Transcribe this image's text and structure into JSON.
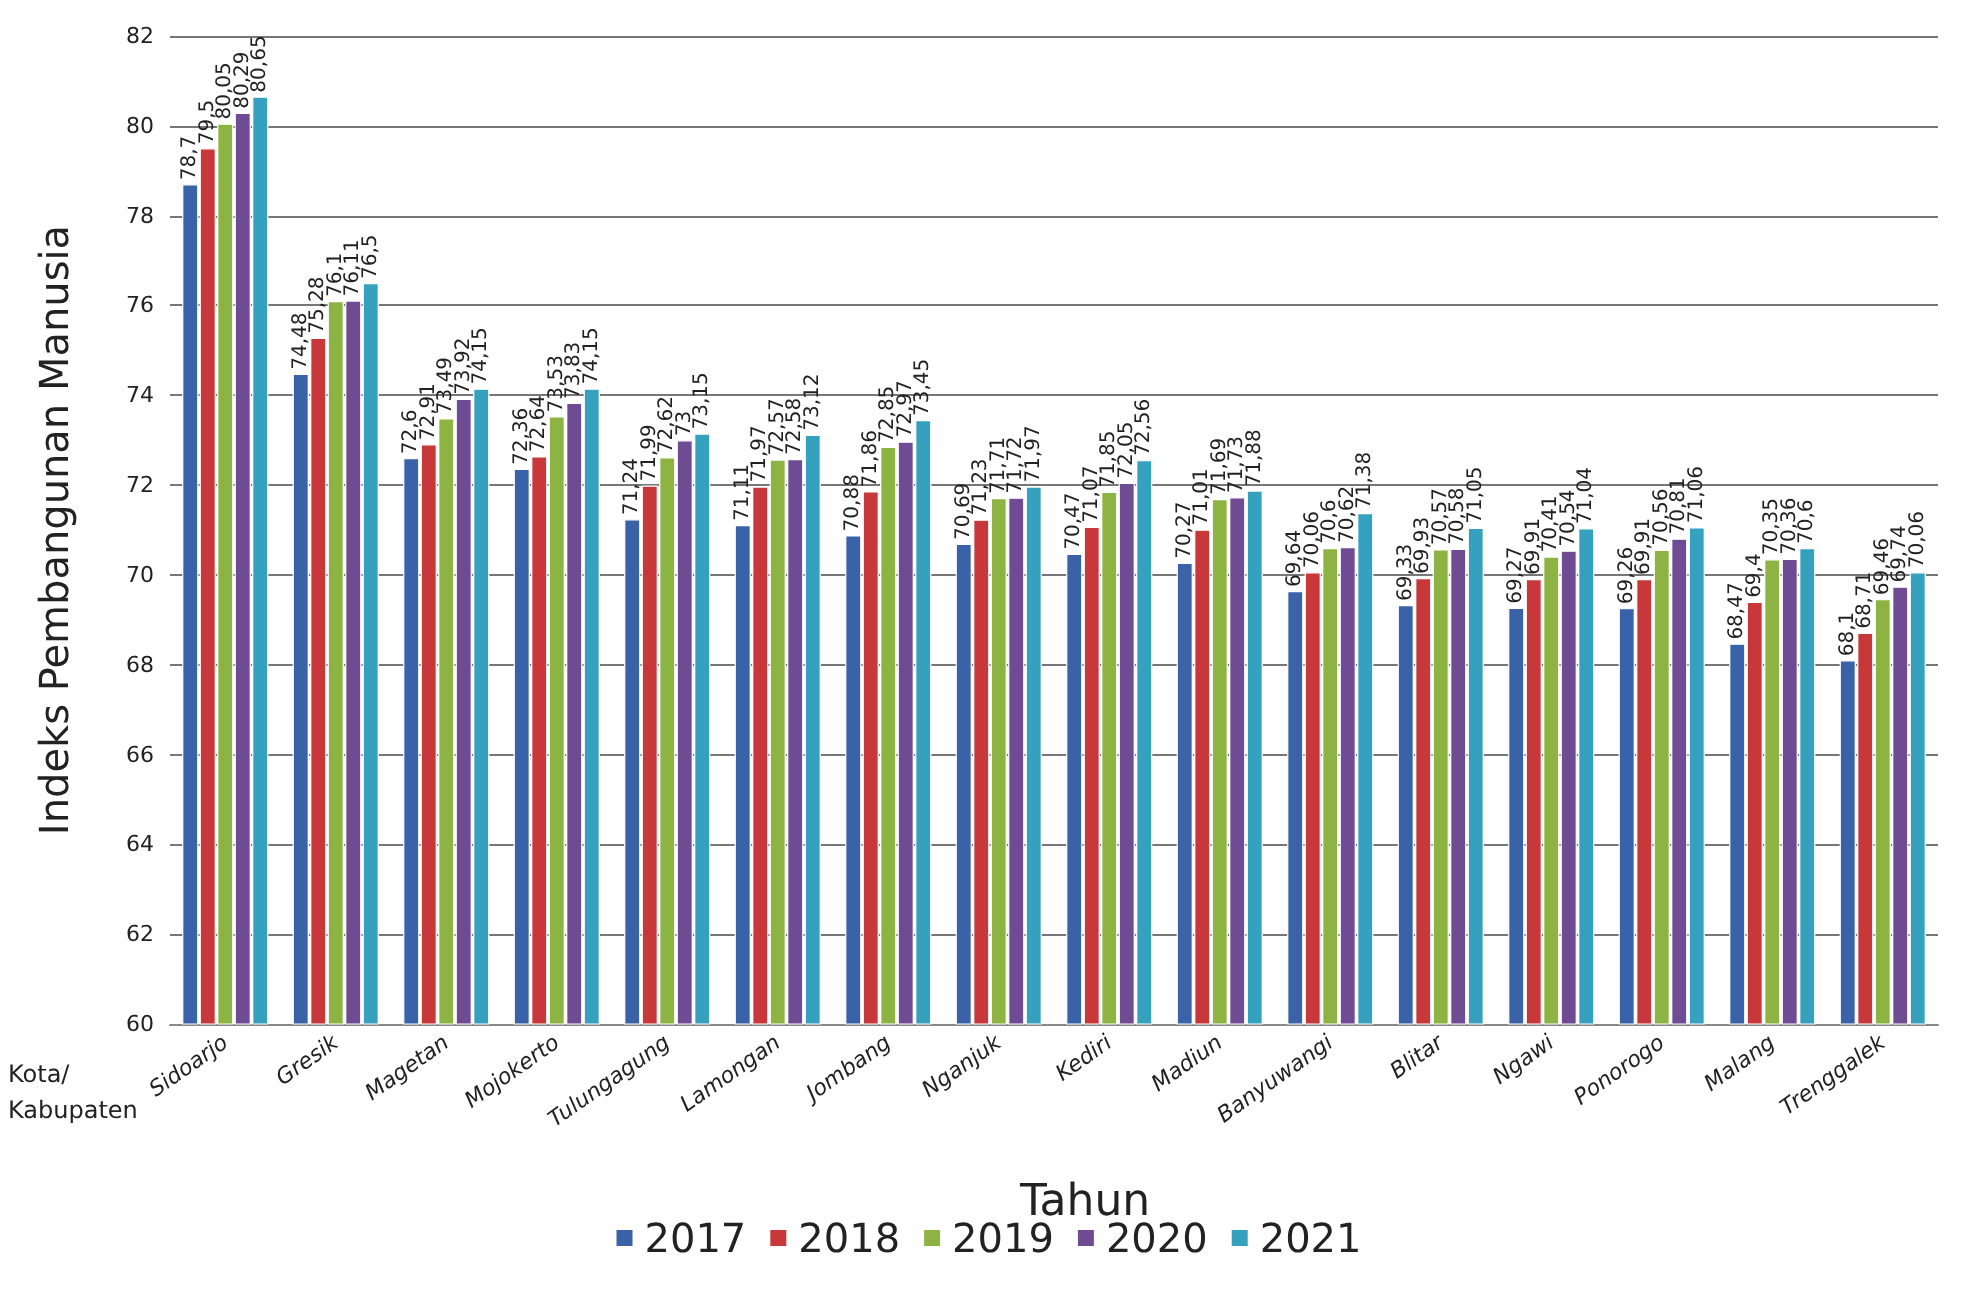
{
  "chart_data": {
    "type": "bar",
    "ylabel": "Indeks Pembangunan Manusia",
    "xlabel": "Kota/\nKabupaten",
    "legend_title": "Tahun",
    "categories": [
      "Sidoarjo",
      "Gresik",
      "Magetan",
      "Mojokerto",
      "Tulungagung",
      "Lamongan",
      "Jombang",
      "Nganjuk",
      "Kediri",
      "Madiun",
      "Banyuwangi",
      "Blitar",
      "Ngawi",
      "Ponorogo",
      "Malang",
      "Trenggalek"
    ],
    "series": [
      {
        "name": "2017",
        "color": "#3a62a8",
        "values": [
          78.7,
          74.48,
          72.6,
          72.36,
          71.24,
          71.11,
          70.88,
          70.69,
          70.47,
          70.27,
          69.64,
          69.33,
          69.27,
          69.26,
          68.47,
          68.1
        ],
        "value_labels": [
          "78,7",
          "74,48",
          "72,6",
          "72,36",
          "71,24",
          "71,11",
          "70,88",
          "70,69",
          "70,47",
          "70,27",
          "69,64",
          "69,33",
          "69,27",
          "69,26",
          "68,47",
          "68,1"
        ]
      },
      {
        "name": "2018",
        "color": "#c8383a",
        "values": [
          79.5,
          75.28,
          72.91,
          72.64,
          71.99,
          71.97,
          71.86,
          71.23,
          71.07,
          71.01,
          70.06,
          69.93,
          69.91,
          69.91,
          69.4,
          68.71
        ],
        "value_labels": [
          "79,5",
          "75,28",
          "72,91",
          "72,64",
          "71,99",
          "71,97",
          "71,86",
          "71,23",
          "71,07",
          "71,01",
          "70,06",
          "69,93",
          "69,91",
          "69,91",
          "69,4",
          "68,71"
        ]
      },
      {
        "name": "2019",
        "color": "#8db443",
        "values": [
          80.05,
          76.1,
          73.49,
          73.53,
          72.62,
          72.57,
          72.85,
          71.71,
          71.85,
          71.69,
          70.6,
          70.57,
          70.41,
          70.56,
          70.35,
          69.46
        ],
        "value_labels": [
          "80,05",
          "76,1",
          "73,49",
          "73,53",
          "72,62",
          "72,57",
          "72,85",
          "71,71",
          "71,85",
          "71,69",
          "70,6",
          "70,57",
          "70,41",
          "70,56",
          "70,35",
          "69,46"
        ]
      },
      {
        "name": "2020",
        "color": "#6e4b93",
        "values": [
          80.29,
          76.11,
          73.92,
          73.83,
          73,
          72.58,
          72.97,
          71.72,
          72.05,
          71.73,
          70.62,
          70.58,
          70.54,
          70.81,
          70.36,
          69.74
        ],
        "value_labels": [
          "80,29",
          "76,11",
          "73,92",
          "73,83",
          "73",
          "72,58",
          "72,97",
          "71,72",
          "72,05",
          "71,73",
          "70,62",
          "70,58",
          "70,54",
          "70,81",
          "70,36",
          "69,74"
        ]
      },
      {
        "name": "2021",
        "color": "#36a0bf",
        "values": [
          80.65,
          76.5,
          74.15,
          74.15,
          73.15,
          73.12,
          73.45,
          71.97,
          72.56,
          71.88,
          71.38,
          71.05,
          71.04,
          71.06,
          70.6,
          70.06
        ],
        "value_labels": [
          "80,65",
          "76,5",
          "74,15",
          "74,15",
          "73,15",
          "73,12",
          "73,45",
          "71,97",
          "72,56",
          "71,88",
          "71,38",
          "71,05",
          "71,04",
          "71,06",
          "70,6",
          "70,06"
        ]
      }
    ],
    "ylim": [
      60,
      82
    ],
    "yticks": [
      60,
      62,
      64,
      66,
      68,
      70,
      72,
      74,
      76,
      78,
      80,
      82
    ],
    "grid": "y",
    "legend": "bottom"
  }
}
